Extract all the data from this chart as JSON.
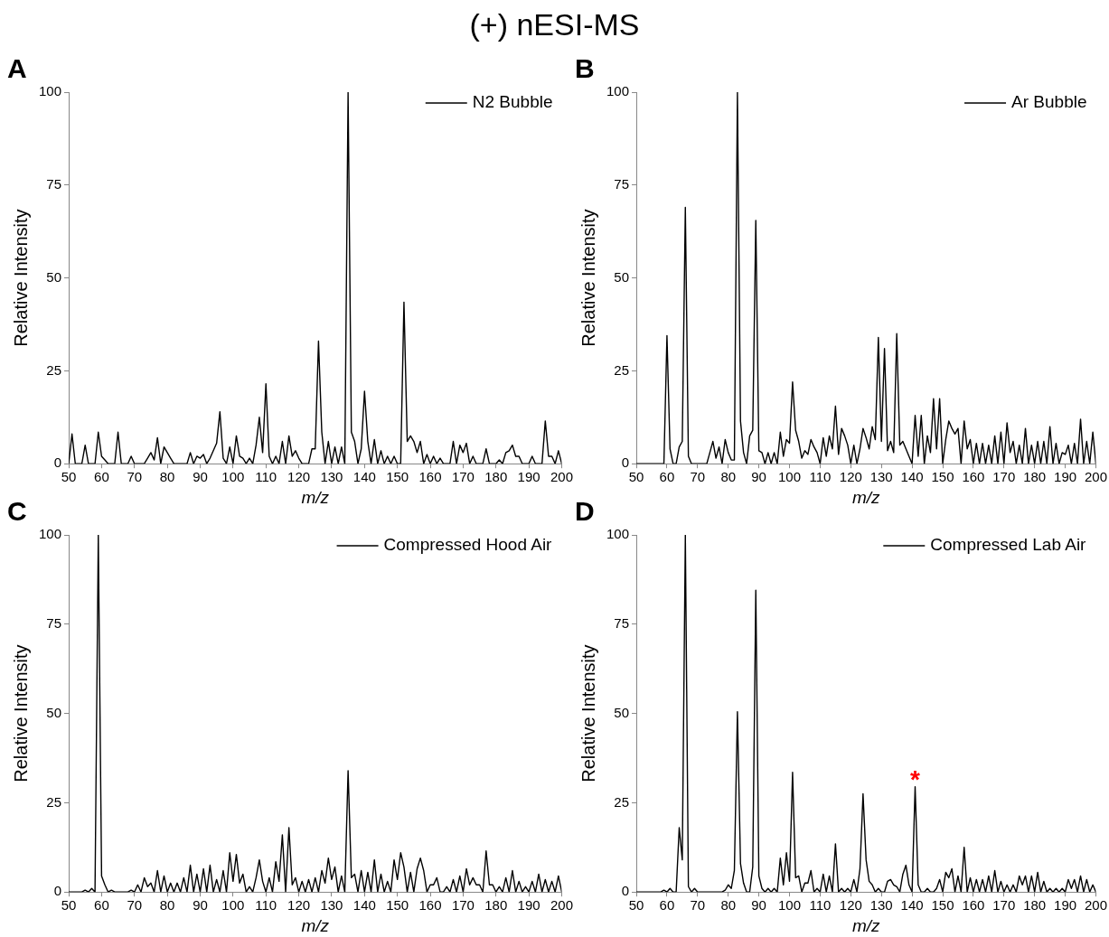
{
  "chart_data": [
    {
      "type": "line",
      "title": "A",
      "annotations": [
        "(+) nESI-MS"
      ],
      "xlabel": "m/z",
      "ylabel": "Relative Intensity",
      "xlim": [
        50,
        200
      ],
      "xticks": [
        50,
        60,
        70,
        80,
        90,
        100,
        110,
        120,
        130,
        140,
        150,
        160,
        170,
        180,
        190,
        200
      ],
      "ylim": [
        0,
        100
      ],
      "yticks": [
        0,
        25,
        50,
        75,
        100
      ],
      "grid": false,
      "legend": "top right",
      "marker": "none",
      "line_style": "solid",
      "x": [
        50,
        51,
        52,
        53,
        54,
        55,
        56,
        57,
        58,
        59,
        60,
        61,
        62,
        63,
        64,
        65,
        66,
        67,
        68,
        69,
        70,
        71,
        72,
        73,
        74,
        75,
        76,
        77,
        78,
        79,
        80,
        81,
        82,
        83,
        84,
        85,
        86,
        87,
        88,
        89,
        90,
        91,
        92,
        93,
        94,
        95,
        96,
        97,
        98,
        99,
        100,
        101,
        102,
        103,
        104,
        105,
        106,
        107,
        108,
        109,
        110,
        111,
        112,
        113,
        114,
        115,
        116,
        117,
        118,
        119,
        120,
        121,
        122,
        123,
        124,
        125,
        126,
        127,
        128,
        129,
        130,
        131,
        132,
        133,
        134,
        135,
        136,
        137,
        138,
        139,
        140,
        141,
        142,
        143,
        144,
        145,
        146,
        147,
        148,
        149,
        150,
        151,
        152,
        153,
        154,
        155,
        156,
        157,
        158,
        159,
        160,
        161,
        162,
        163,
        164,
        165,
        166,
        167,
        168,
        169,
        170,
        171,
        172,
        173,
        174,
        175,
        176,
        177,
        178,
        179,
        180,
        181,
        182,
        183,
        184,
        185,
        186,
        187,
        188,
        189,
        190,
        191,
        192,
        193,
        194,
        195,
        196,
        197,
        198,
        199,
        200
      ],
      "series": [
        {
          "name": "N2 Bubble",
          "color": "#000000",
          "values": [
            0,
            8,
            0,
            0,
            0,
            5,
            0,
            0,
            0,
            8.5,
            2,
            1,
            0,
            0,
            0,
            8.5,
            0,
            0,
            0,
            2,
            0,
            0,
            0,
            0,
            1.5,
            3,
            1,
            7,
            0,
            4.5,
            3,
            1.5,
            0,
            0,
            0,
            0,
            0,
            3,
            0,
            2,
            1.5,
            2.5,
            0,
            1.5,
            3.5,
            5.5,
            14,
            1.5,
            0,
            4.5,
            0,
            7.5,
            2,
            1.5,
            0,
            1.5,
            0,
            5,
            12.5,
            3,
            21.5,
            2,
            0,
            2,
            0,
            6,
            0,
            7.5,
            2,
            3.5,
            1.5,
            0,
            0,
            0,
            4,
            4,
            33,
            8.5,
            0,
            6,
            0,
            4.5,
            0,
            4.5,
            0,
            100,
            8.5,
            6,
            0,
            4,
            19.5,
            6,
            0,
            6.5,
            0,
            3.5,
            0,
            2,
            0,
            2,
            0,
            0,
            43.5,
            6,
            7.5,
            6,
            3,
            6,
            0,
            2.5,
            0,
            2,
            0,
            1.5,
            0,
            0,
            0,
            6,
            0,
            5,
            3,
            5.5,
            0,
            2,
            0,
            0,
            0,
            4,
            0,
            0,
            0,
            1,
            0,
            3,
            3.5,
            5,
            2,
            2,
            0,
            0,
            0,
            2,
            0,
            0,
            0,
            11.5,
            2,
            2,
            0,
            3.5,
            0
          ]
        }
      ]
    },
    {
      "type": "line",
      "title": "B",
      "xlabel": "m/z",
      "ylabel": "Relative Intensity",
      "xlim": [
        50,
        200
      ],
      "xticks": [
        50,
        60,
        70,
        80,
        90,
        100,
        110,
        120,
        130,
        140,
        150,
        160,
        170,
        180,
        190,
        200
      ],
      "ylim": [
        0,
        100
      ],
      "yticks": [
        0,
        25,
        50,
        75,
        100
      ],
      "grid": false,
      "legend": "top right",
      "marker": "none",
      "line_style": "solid",
      "x": [
        50,
        51,
        52,
        53,
        54,
        55,
        56,
        57,
        58,
        59,
        60,
        61,
        62,
        63,
        64,
        65,
        66,
        67,
        68,
        69,
        70,
        71,
        72,
        73,
        74,
        75,
        76,
        77,
        78,
        79,
        80,
        81,
        82,
        83,
        84,
        85,
        86,
        87,
        88,
        89,
        90,
        91,
        92,
        93,
        94,
        95,
        96,
        97,
        98,
        99,
        100,
        101,
        102,
        103,
        104,
        105,
        106,
        107,
        108,
        109,
        110,
        111,
        112,
        113,
        114,
        115,
        116,
        117,
        118,
        119,
        120,
        121,
        122,
        123,
        124,
        125,
        126,
        127,
        128,
        129,
        130,
        131,
        132,
        133,
        134,
        135,
        136,
        137,
        138,
        139,
        140,
        141,
        142,
        143,
        144,
        145,
        146,
        147,
        148,
        149,
        150,
        151,
        152,
        153,
        154,
        155,
        156,
        157,
        158,
        159,
        160,
        161,
        162,
        163,
        164,
        165,
        166,
        167,
        168,
        169,
        170,
        171,
        172,
        173,
        174,
        175,
        176,
        177,
        178,
        179,
        180,
        181,
        182,
        183,
        184,
        185,
        186,
        187,
        188,
        189,
        190,
        191,
        192,
        193,
        194,
        195,
        196,
        197,
        198,
        199,
        200
      ],
      "series": [
        {
          "name": "Ar Bubble",
          "color": "#000000",
          "values": [
            0,
            0,
            0,
            0,
            0,
            0,
            0,
            0,
            0,
            0,
            34.5,
            4,
            0,
            0,
            4.5,
            6,
            69,
            2,
            0,
            0,
            0,
            0,
            0,
            0,
            3,
            6,
            1.5,
            4.5,
            0,
            6.5,
            3,
            1,
            1,
            100,
            11.5,
            3,
            0,
            7.5,
            9,
            65.5,
            3.5,
            3,
            0,
            3,
            0,
            3,
            0,
            8.5,
            2,
            6.5,
            5.5,
            22,
            9,
            6,
            1.5,
            3.5,
            2.5,
            6.5,
            4.5,
            3,
            0,
            7,
            2,
            7.5,
            4,
            15.5,
            2.5,
            9.5,
            7.5,
            5,
            0,
            5,
            0,
            4,
            9.5,
            7,
            4,
            10,
            6.5,
            34,
            6,
            31,
            3.5,
            6,
            3,
            35,
            5,
            6,
            4,
            2,
            0,
            13,
            2,
            13,
            0,
            7.5,
            3,
            17.5,
            4,
            17.5,
            0,
            6.5,
            11.5,
            9.5,
            8,
            9.5,
            0,
            11.5,
            4,
            6.5,
            0,
            5.5,
            0,
            5.5,
            0,
            5,
            0,
            7.5,
            0,
            8.5,
            0,
            11,
            3,
            6,
            0,
            5,
            0,
            9.5,
            0,
            5,
            0,
            6,
            0,
            6,
            0,
            10,
            0,
            5.5,
            0,
            3,
            2.5,
            5,
            0,
            5.5,
            0,
            12,
            0,
            6,
            0,
            8.5,
            0
          ]
        }
      ]
    },
    {
      "type": "line",
      "title": "C",
      "xlabel": "m/z",
      "ylabel": "Relative Intensity",
      "xlim": [
        50,
        200
      ],
      "xticks": [
        50,
        60,
        70,
        80,
        90,
        100,
        110,
        120,
        130,
        140,
        150,
        160,
        170,
        180,
        190,
        200
      ],
      "ylim": [
        0,
        100
      ],
      "yticks": [
        0,
        25,
        50,
        75,
        100
      ],
      "grid": false,
      "legend": "top right",
      "marker": "none",
      "line_style": "solid",
      "x": [
        50,
        51,
        52,
        53,
        54,
        55,
        56,
        57,
        58,
        59,
        60,
        61,
        62,
        63,
        64,
        65,
        66,
        67,
        68,
        69,
        70,
        71,
        72,
        73,
        74,
        75,
        76,
        77,
        78,
        79,
        80,
        81,
        82,
        83,
        84,
        85,
        86,
        87,
        88,
        89,
        90,
        91,
        92,
        93,
        94,
        95,
        96,
        97,
        98,
        99,
        100,
        101,
        102,
        103,
        104,
        105,
        106,
        107,
        108,
        109,
        110,
        111,
        112,
        113,
        114,
        115,
        116,
        117,
        118,
        119,
        120,
        121,
        122,
        123,
        124,
        125,
        126,
        127,
        128,
        129,
        130,
        131,
        132,
        133,
        134,
        135,
        136,
        137,
        138,
        139,
        140,
        141,
        142,
        143,
        144,
        145,
        146,
        147,
        148,
        149,
        150,
        151,
        152,
        153,
        154,
        155,
        156,
        157,
        158,
        159,
        160,
        161,
        162,
        163,
        164,
        165,
        166,
        167,
        168,
        169,
        170,
        171,
        172,
        173,
        174,
        175,
        176,
        177,
        178,
        179,
        180,
        181,
        182,
        183,
        184,
        185,
        186,
        187,
        188,
        189,
        190,
        191,
        192,
        193,
        194,
        195,
        196,
        197,
        198,
        199,
        200
      ],
      "series": [
        {
          "name": "Compressed Hood Air",
          "color": "#000000",
          "values": [
            0,
            0,
            0,
            0,
            0,
            0.5,
            0,
            1,
            0,
            100,
            4.5,
            2,
            0,
            0.5,
            0,
            0,
            0,
            0,
            0,
            0.5,
            0,
            2,
            0,
            4,
            1.5,
            2.5,
            0,
            6,
            0,
            4.5,
            0,
            2.5,
            0,
            2.5,
            0,
            4,
            0,
            7.5,
            0,
            5,
            0,
            6.5,
            0,
            7.5,
            0,
            3.5,
            0,
            6,
            0,
            11,
            3,
            10.5,
            2.5,
            5,
            0,
            1.5,
            0,
            4,
            9,
            3,
            0,
            4,
            0,
            8.5,
            3,
            16,
            0,
            18,
            2,
            4,
            0,
            3,
            0,
            3.5,
            0,
            4,
            0,
            6,
            2.5,
            9.5,
            3.5,
            7,
            0,
            4.5,
            0,
            34,
            4,
            5,
            0,
            6,
            0,
            5.5,
            0,
            9,
            0,
            5,
            0,
            3,
            0,
            9,
            3.5,
            11,
            7,
            0,
            5.5,
            0,
            6.5,
            9.5,
            6,
            0,
            2,
            2,
            4,
            0,
            0,
            1.5,
            0,
            3.5,
            0,
            4.5,
            0,
            6.5,
            2,
            4,
            2,
            2,
            0,
            11.5,
            2,
            2,
            0,
            1.5,
            0,
            4,
            0,
            6,
            0,
            3,
            0,
            1.5,
            0,
            3,
            0,
            5,
            0,
            3.5,
            0,
            3,
            0,
            4.5,
            0
          ]
        }
      ]
    },
    {
      "type": "line",
      "title": "D",
      "annotations": [
        {
          "text": "*",
          "x": 141,
          "y": 29.5
        }
      ],
      "xlabel": "m/z",
      "ylabel": "Relative Intensity",
      "xlim": [
        50,
        200
      ],
      "xticks": [
        50,
        60,
        70,
        80,
        90,
        100,
        110,
        120,
        130,
        140,
        150,
        160,
        170,
        180,
        190,
        200
      ],
      "ylim": [
        0,
        100
      ],
      "yticks": [
        0,
        25,
        50,
        75,
        100
      ],
      "grid": false,
      "legend": "top right",
      "marker": "none",
      "line_style": "solid",
      "x": [
        50,
        51,
        52,
        53,
        54,
        55,
        56,
        57,
        58,
        59,
        60,
        61,
        62,
        63,
        64,
        65,
        66,
        67,
        68,
        69,
        70,
        71,
        72,
        73,
        74,
        75,
        76,
        77,
        78,
        79,
        80,
        81,
        82,
        83,
        84,
        85,
        86,
        87,
        88,
        89,
        90,
        91,
        92,
        93,
        94,
        95,
        96,
        97,
        98,
        99,
        100,
        101,
        102,
        103,
        104,
        105,
        106,
        107,
        108,
        109,
        110,
        111,
        112,
        113,
        114,
        115,
        116,
        117,
        118,
        119,
        120,
        121,
        122,
        123,
        124,
        125,
        126,
        127,
        128,
        129,
        130,
        131,
        132,
        133,
        134,
        135,
        136,
        137,
        138,
        139,
        140,
        141,
        142,
        143,
        144,
        145,
        146,
        147,
        148,
        149,
        150,
        151,
        152,
        153,
        154,
        155,
        156,
        157,
        158,
        159,
        160,
        161,
        162,
        163,
        164,
        165,
        166,
        167,
        168,
        169,
        170,
        171,
        172,
        173,
        174,
        175,
        176,
        177,
        178,
        179,
        180,
        181,
        182,
        183,
        184,
        185,
        186,
        187,
        188,
        189,
        190,
        191,
        192,
        193,
        194,
        195,
        196,
        197,
        198,
        199,
        200
      ],
      "series": [
        {
          "name": "Compressed Lab Air",
          "color": "#000000",
          "values": [
            0,
            0,
            0,
            0,
            0,
            0,
            0,
            0,
            0,
            0.5,
            0,
            1,
            0,
            0,
            18,
            9,
            100,
            1.5,
            0,
            1,
            0,
            0,
            0,
            0,
            0,
            0,
            0,
            0,
            0,
            0.5,
            2,
            1,
            6,
            50.5,
            8,
            2.5,
            0,
            0,
            7,
            84.5,
            4.5,
            1,
            0,
            1,
            0,
            1,
            0,
            9.5,
            2,
            11,
            3,
            33.5,
            4,
            4.5,
            0,
            2.5,
            2.5,
            6,
            0,
            1,
            0,
            5,
            0,
            4.5,
            0,
            13.5,
            0,
            1,
            0,
            1,
            0,
            3.5,
            0,
            6.5,
            27.5,
            9,
            3,
            2,
            0,
            1,
            0,
            0,
            3,
            3.5,
            2,
            1.5,
            0,
            5,
            7.5,
            2,
            0,
            29.5,
            2,
            0,
            0,
            1,
            0,
            0,
            1,
            3.5,
            0,
            5.5,
            4,
            6.5,
            0,
            4.5,
            0,
            12.5,
            0,
            4,
            0,
            3.5,
            0,
            3.5,
            0,
            4.5,
            0,
            6,
            0,
            3,
            0,
            2,
            0,
            2,
            0,
            4.5,
            2,
            4.5,
            0,
            4.5,
            0,
            5.5,
            0,
            3,
            0,
            1,
            0,
            1,
            0,
            1,
            0,
            3.5,
            1,
            3.5,
            0,
            4.5,
            0,
            3.5,
            0,
            2,
            0
          ]
        }
      ]
    }
  ]
}
